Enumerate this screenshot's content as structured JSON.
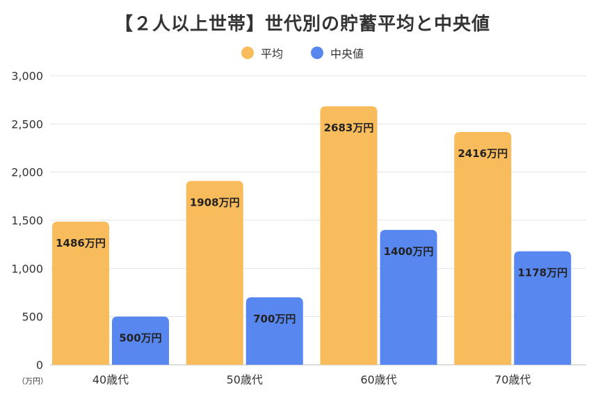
{
  "chart_data": {
    "type": "bar",
    "title": "【２人以上世帯】世代別の貯蓄平均と中央値",
    "unit_label": "（万円）",
    "categories": [
      "40歳代",
      "50歳代",
      "60歳代",
      "70歳代"
    ],
    "series": [
      {
        "name": "平均",
        "color": "#F9BC5C",
        "values": [
          1486,
          1908,
          2683,
          2416
        ],
        "labels": [
          "1486万円",
          "1908万円",
          "2683万円",
          "2416万円"
        ]
      },
      {
        "name": "中央値",
        "color": "#5987F0",
        "values": [
          500,
          700,
          1400,
          1178
        ],
        "labels": [
          "500万円",
          "700万円",
          "1400万円",
          "1178万円"
        ]
      }
    ],
    "ylim": [
      0,
      3000
    ],
    "yticks": [
      0,
      500,
      1000,
      1500,
      2000,
      2500,
      3000
    ],
    "ytick_labels": [
      "0",
      "500",
      "1,000",
      "1,500",
      "2,000",
      "2,500",
      "3,000"
    ],
    "grid": true,
    "legend_position": "top-center"
  }
}
